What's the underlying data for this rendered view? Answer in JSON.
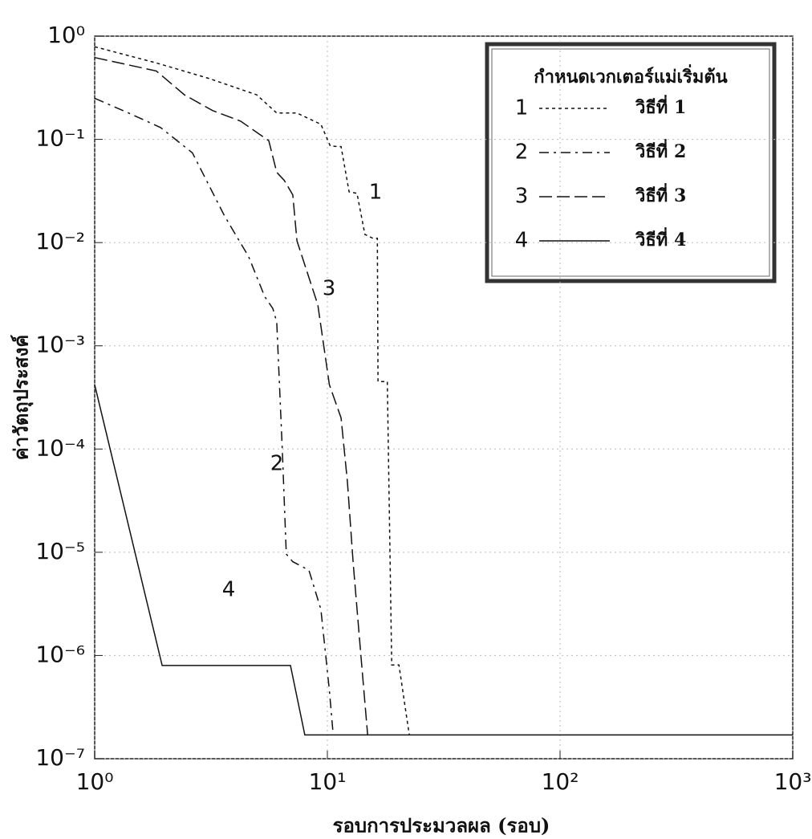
{
  "chart_data": {
    "type": "line",
    "xlabel": "รอบการประมวลผล (รอบ)",
    "ylabel": "ค่าวัตถุประสงค์",
    "log_x": true,
    "log_y": true,
    "grid": true,
    "xlim": [
      1,
      1000
    ],
    "ylim": [
      1e-07,
      1
    ],
    "xticks": [
      {
        "value": 1,
        "label": "10⁰"
      },
      {
        "value": 10,
        "label": "10¹"
      },
      {
        "value": 100,
        "label": "10²"
      },
      {
        "value": 1000,
        "label": "10³"
      }
    ],
    "yticks": [
      {
        "value": 1e-07,
        "label": "10⁻⁷"
      },
      {
        "value": 1e-06,
        "label": "10⁻⁶"
      },
      {
        "value": 1e-05,
        "label": "10⁻⁵"
      },
      {
        "value": 0.0001,
        "label": "10⁻⁴"
      },
      {
        "value": 0.001,
        "label": "10⁻³"
      },
      {
        "value": 0.01,
        "label": "10⁻²"
      },
      {
        "value": 0.1,
        "label": "10⁻¹"
      },
      {
        "value": 1,
        "label": "10⁰"
      }
    ],
    "legend_title": "กำหนดเวกเตอร์แม่เริ่มต้น",
    "legend_position": "upper right",
    "series": [
      {
        "name": "วิธีที่ 1",
        "label": "1",
        "color": "#111111",
        "line_style": "dotted",
        "x": [
          1,
          1.84,
          3.09,
          4.97,
          6.06,
          7.4,
          9.38,
          10.3,
          11.45,
          12.4,
          13.4,
          14.5,
          15.7,
          16.4,
          16.5,
          18.1,
          18.9,
          20.3,
          22.5
        ],
        "values": [
          0.79,
          0.55,
          0.39,
          0.27,
          0.18,
          0.18,
          0.14,
          0.086,
          0.085,
          0.031,
          0.03,
          0.012,
          0.011,
          0.011,
          0.00045,
          0.00045,
          8.1e-07,
          8.1e-07,
          1.7e-07
        ]
      },
      {
        "name": "วิธีที่ 2",
        "label": "2",
        "color": "#111111",
        "line_style": "dashdot",
        "x": [
          1,
          1.4,
          1.92,
          2.63,
          3.62,
          4.59,
          5.38,
          5.83,
          6.06,
          6.4,
          6.66,
          7.1,
          8.33,
          9.38,
          10.2,
          10.6
        ],
        "values": [
          0.25,
          0.18,
          0.13,
          0.074,
          0.018,
          0.0073,
          0.003,
          0.0023,
          0.0017,
          0.0001,
          9.6e-06,
          8.1e-06,
          6.7e-06,
          2.8e-06,
          4.6e-07,
          1.7e-07
        ]
      },
      {
        "name": "วิธีที่ 3",
        "label": "3",
        "color": "#111111",
        "line_style": "dashed",
        "x": [
          1,
          1.84,
          2.43,
          3.21,
          4.24,
          5.6,
          6.06,
          6.53,
          7.1,
          7.4,
          9.1,
          10.2,
          11.45,
          12.2,
          12.9,
          14,
          14.9
        ],
        "values": [
          0.62,
          0.46,
          0.27,
          0.19,
          0.15,
          0.097,
          0.048,
          0.04,
          0.029,
          0.0104,
          0.0025,
          0.00042,
          0.0002,
          4.8e-05,
          8e-06,
          8.8e-07,
          1.7e-07
        ]
      },
      {
        "name": "วิธีที่ 4",
        "label": "4",
        "color": "#111111",
        "line_style": "solid",
        "x": [
          1,
          1.95,
          6.94,
          8.0,
          1000
        ],
        "values": [
          0.00042,
          8e-07,
          8e-07,
          1.7e-07,
          1.7e-07
        ]
      }
    ]
  }
}
